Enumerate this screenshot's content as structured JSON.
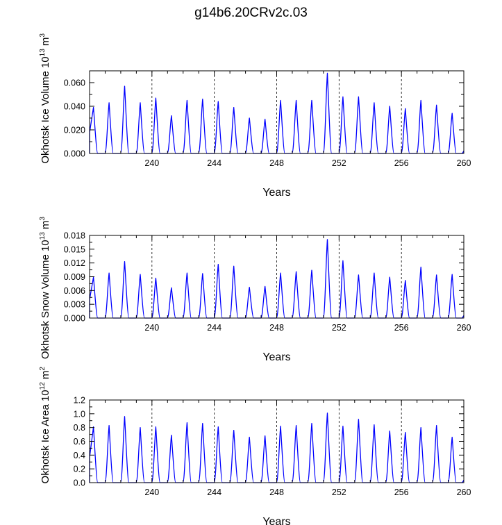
{
  "title": "g14b6.20CRv2c.03",
  "chart_data": [
    {
      "type": "line",
      "ylabel": {
        "text": "Okhotsk Ice Volume 10",
        "exponent": "13",
        "unit": " m",
        "unit_exponent": "3"
      },
      "xlabel": "Years",
      "xlim": [
        236.0,
        260.0
      ],
      "ylim": [
        0.0,
        0.07
      ],
      "xticks": [
        240,
        244,
        248,
        252,
        256,
        260
      ],
      "xtick_labels": [
        "240",
        "244",
        "248",
        "252",
        "256",
        "260"
      ],
      "yticks": [
        0.0,
        0.02,
        0.04,
        0.06
      ],
      "ytick_labels": [
        "0.000",
        "0.020",
        "0.040",
        "0.060"
      ],
      "dashed_vlines": [
        240,
        244,
        248,
        252,
        256
      ],
      "series": [
        {
          "name": "Okhotsk Ice Volume",
          "color": "#0000ff",
          "peaks": [
            {
              "x": 236.25,
              "y": 0.039
            },
            {
              "x": 237.25,
              "y": 0.043
            },
            {
              "x": 238.25,
              "y": 0.057
            },
            {
              "x": 239.25,
              "y": 0.043
            },
            {
              "x": 240.25,
              "y": 0.047
            },
            {
              "x": 241.25,
              "y": 0.032
            },
            {
              "x": 242.25,
              "y": 0.045
            },
            {
              "x": 243.25,
              "y": 0.046
            },
            {
              "x": 244.25,
              "y": 0.044
            },
            {
              "x": 245.25,
              "y": 0.039
            },
            {
              "x": 246.25,
              "y": 0.03
            },
            {
              "x": 247.25,
              "y": 0.029
            },
            {
              "x": 248.25,
              "y": 0.045
            },
            {
              "x": 249.25,
              "y": 0.045
            },
            {
              "x": 250.25,
              "y": 0.045
            },
            {
              "x": 251.25,
              "y": 0.068
            },
            {
              "x": 252.25,
              "y": 0.048
            },
            {
              "x": 253.25,
              "y": 0.048
            },
            {
              "x": 254.25,
              "y": 0.043
            },
            {
              "x": 255.25,
              "y": 0.04
            },
            {
              "x": 256.25,
              "y": 0.038
            },
            {
              "x": 257.25,
              "y": 0.045
            },
            {
              "x": 258.25,
              "y": 0.041
            },
            {
              "x": 259.25,
              "y": 0.034
            }
          ]
        }
      ]
    },
    {
      "type": "line",
      "ylabel": {
        "text": "Okhotsk Snow Volume 10",
        "exponent": "13",
        "unit": " m",
        "unit_exponent": "3"
      },
      "xlabel": "Years",
      "xlim": [
        236.0,
        260.0
      ],
      "ylim": [
        0.0,
        0.018
      ],
      "xticks": [
        240,
        244,
        248,
        252,
        256,
        260
      ],
      "xtick_labels": [
        "240",
        "244",
        "248",
        "252",
        "256",
        "260"
      ],
      "yticks": [
        0.0,
        0.003,
        0.006,
        0.009,
        0.012,
        0.015,
        0.018
      ],
      "ytick_labels": [
        "0.000",
        "0.003",
        "0.006",
        "0.009",
        "0.012",
        "0.015",
        "0.018"
      ],
      "dashed_vlines": [
        240,
        244,
        248,
        252,
        256
      ],
      "series": [
        {
          "name": "Okhotsk Snow Volume",
          "color": "#0000ff",
          "peaks": [
            {
              "x": 236.25,
              "y": 0.0089
            },
            {
              "x": 237.25,
              "y": 0.0098
            },
            {
              "x": 238.25,
              "y": 0.0123
            },
            {
              "x": 239.25,
              "y": 0.0095
            },
            {
              "x": 240.25,
              "y": 0.0087
            },
            {
              "x": 241.25,
              "y": 0.0066
            },
            {
              "x": 242.25,
              "y": 0.0098
            },
            {
              "x": 243.25,
              "y": 0.0097
            },
            {
              "x": 244.25,
              "y": 0.0117
            },
            {
              "x": 245.25,
              "y": 0.0113
            },
            {
              "x": 246.25,
              "y": 0.0067
            },
            {
              "x": 247.25,
              "y": 0.0069
            },
            {
              "x": 248.25,
              "y": 0.0098
            },
            {
              "x": 249.25,
              "y": 0.0101
            },
            {
              "x": 250.25,
              "y": 0.0104
            },
            {
              "x": 251.25,
              "y": 0.0171
            },
            {
              "x": 252.25,
              "y": 0.0125
            },
            {
              "x": 253.25,
              "y": 0.0094
            },
            {
              "x": 254.25,
              "y": 0.0098
            },
            {
              "x": 255.25,
              "y": 0.0089
            },
            {
              "x": 256.25,
              "y": 0.0082
            },
            {
              "x": 257.25,
              "y": 0.0111
            },
            {
              "x": 258.25,
              "y": 0.0094
            },
            {
              "x": 259.25,
              "y": 0.0095
            }
          ]
        }
      ]
    },
    {
      "type": "line",
      "ylabel": {
        "text": "Okhotsk Ice Area 10",
        "exponent": "12",
        "unit": " m",
        "unit_exponent": "2"
      },
      "xlabel": "Years",
      "xlim": [
        236.0,
        260.0
      ],
      "ylim": [
        0.0,
        1.2
      ],
      "xticks": [
        240,
        244,
        248,
        252,
        256,
        260
      ],
      "xtick_labels": [
        "240",
        "244",
        "248",
        "252",
        "256",
        "260"
      ],
      "yticks": [
        0.0,
        0.2,
        0.4,
        0.6,
        0.8,
        1.0,
        1.2
      ],
      "ytick_labels": [
        "0.0",
        "0.2",
        "0.4",
        "0.6",
        "0.8",
        "1.0",
        "1.2"
      ],
      "dashed_vlines": [
        240,
        244,
        248,
        252,
        256
      ],
      "series": [
        {
          "name": "Okhotsk Ice Area",
          "color": "#0000ff",
          "peaks": [
            {
              "x": 236.25,
              "y": 0.81
            },
            {
              "x": 237.25,
              "y": 0.83
            },
            {
              "x": 238.25,
              "y": 0.96
            },
            {
              "x": 239.25,
              "y": 0.8
            },
            {
              "x": 240.25,
              "y": 0.81
            },
            {
              "x": 241.25,
              "y": 0.69
            },
            {
              "x": 242.25,
              "y": 0.87
            },
            {
              "x": 243.25,
              "y": 0.86
            },
            {
              "x": 244.25,
              "y": 0.81
            },
            {
              "x": 245.25,
              "y": 0.76
            },
            {
              "x": 246.25,
              "y": 0.66
            },
            {
              "x": 247.25,
              "y": 0.68
            },
            {
              "x": 248.25,
              "y": 0.82
            },
            {
              "x": 249.25,
              "y": 0.83
            },
            {
              "x": 250.25,
              "y": 0.86
            },
            {
              "x": 251.25,
              "y": 1.01
            },
            {
              "x": 252.25,
              "y": 0.82
            },
            {
              "x": 253.25,
              "y": 0.92
            },
            {
              "x": 254.25,
              "y": 0.84
            },
            {
              "x": 255.25,
              "y": 0.75
            },
            {
              "x": 256.25,
              "y": 0.73
            },
            {
              "x": 257.25,
              "y": 0.8
            },
            {
              "x": 258.25,
              "y": 0.83
            },
            {
              "x": 259.25,
              "y": 0.66
            }
          ]
        }
      ]
    }
  ]
}
